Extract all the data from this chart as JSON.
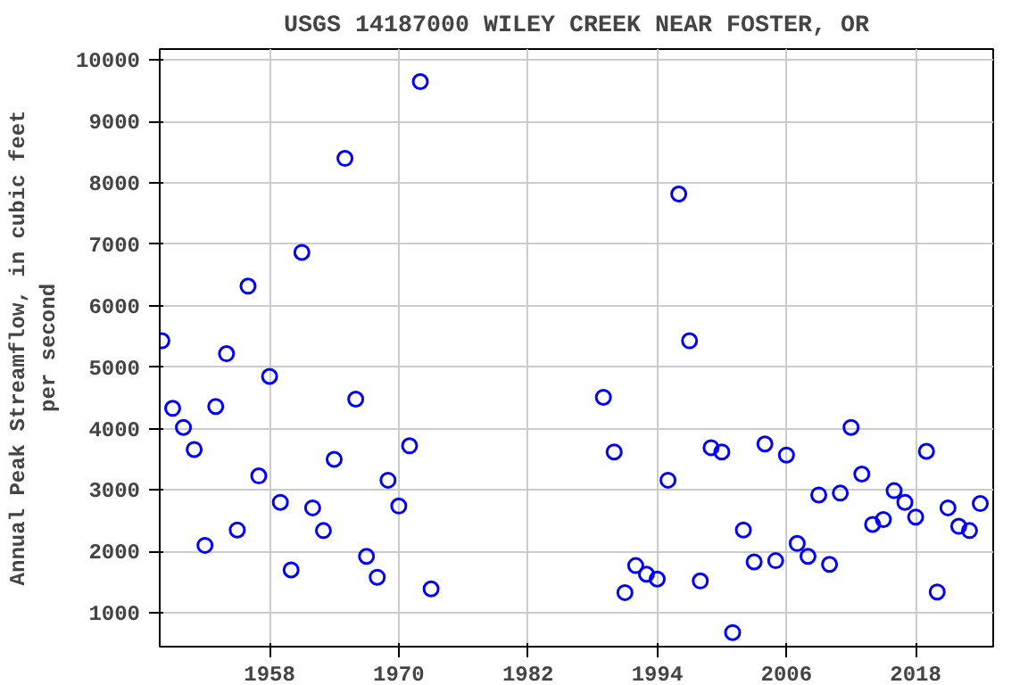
{
  "chart_data": {
    "type": "scatter",
    "title": "USGS 14187000 WILEY CREEK NEAR FOSTER, OR",
    "ylabel": "Annual Peak Streamflow, in cubic feet\nper second",
    "x": [
      1948,
      1949,
      1950,
      1951,
      1952,
      1953,
      1954,
      1955,
      1956,
      1957,
      1958,
      1959,
      1960,
      1961,
      1962,
      1963,
      1964,
      1965,
      1966,
      1967,
      1968,
      1969,
      1970,
      1971,
      1972,
      1973,
      1989,
      1990,
      1991,
      1992,
      1993,
      1994,
      1995,
      1996,
      1997,
      1998,
      1999,
      2000,
      2001,
      2002,
      2003,
      2004,
      2005,
      2006,
      2007,
      2008,
      2009,
      2010,
      2011,
      2012,
      2013,
      2014,
      2015,
      2016,
      2017,
      2018,
      2019,
      2020,
      2021,
      2022,
      2023,
      2024
    ],
    "series": [
      {
        "color": "#0000ff",
        "values": [
          5430,
          4330,
          4020,
          3660,
          2100,
          4360,
          5220,
          2350,
          6320,
          3230,
          4850,
          2800,
          1700,
          6870,
          2710,
          2340,
          3500,
          8400,
          4480,
          1920,
          1580,
          3160,
          2740,
          3720,
          9650,
          1390,
          4510,
          3620,
          1330,
          1770,
          1630,
          1550,
          3160,
          7820,
          5430,
          1520,
          3690,
          3620,
          680,
          2350,
          1830,
          3750,
          1850,
          3570,
          2130,
          1920,
          2920,
          1790,
          2950,
          4020,
          3260,
          2440,
          2520,
          2990,
          2800,
          2560,
          3630,
          1340,
          2710,
          2410,
          2340,
          2780
        ]
      }
    ],
    "xlim": [
      1947.8,
      2025.2
    ],
    "ylim": [
      450,
      10180
    ],
    "xticks": [
      1958,
      1970,
      1982,
      1994,
      2006,
      2018
    ],
    "yticks": [
      1000,
      2000,
      3000,
      4000,
      5000,
      6000,
      7000,
      8000,
      9000,
      10000
    ],
    "grid": true,
    "marker": "circle"
  }
}
